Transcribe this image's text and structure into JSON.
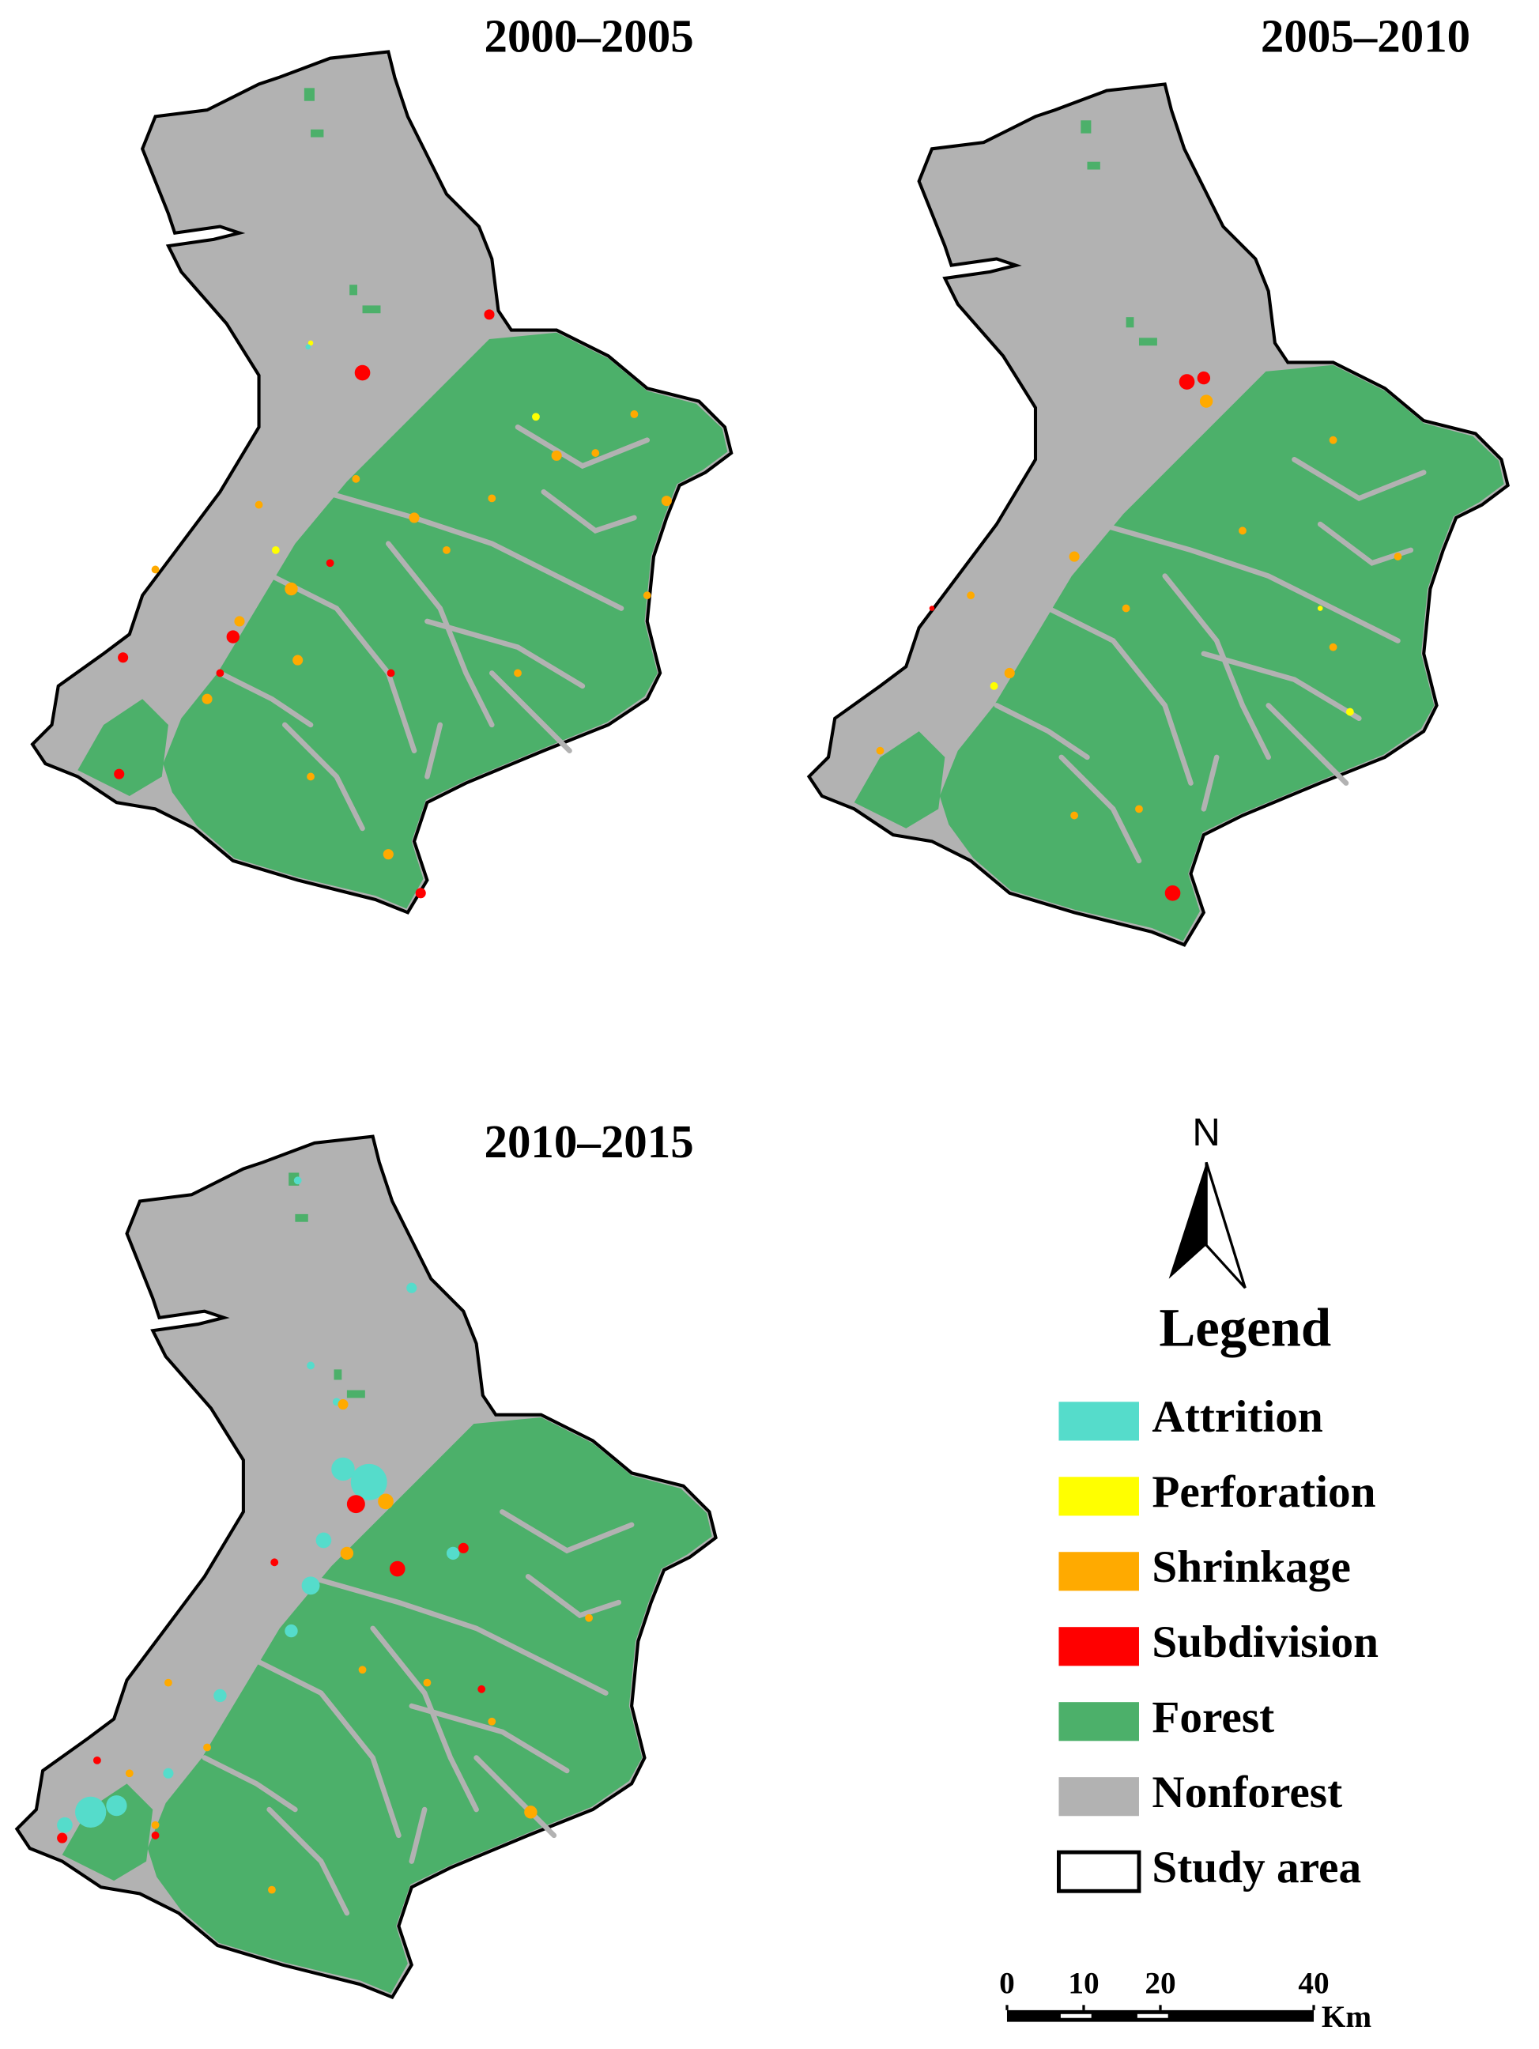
{
  "panels": [
    {
      "title": "2000–2005"
    },
    {
      "title": "2005–2010"
    },
    {
      "title": "2010–2015"
    }
  ],
  "north_arrow": {
    "label": "N"
  },
  "legend": {
    "title": "Legend",
    "items": [
      {
        "label": "Attrition",
        "color": "#55dccb"
      },
      {
        "label": "Perforation",
        "color": "#ffff00"
      },
      {
        "label": "Shrinkage",
        "color": "#ffaa00"
      },
      {
        "label": "Subdivision",
        "color": "#ff0000"
      },
      {
        "label": "Forest",
        "color": "#4cb06a"
      },
      {
        "label": "Nonforest",
        "color": "#b2b2b2"
      },
      {
        "label": "Study area",
        "color": "#ffffff"
      }
    ]
  },
  "scale_bar": {
    "ticks": [
      0,
      10,
      20,
      40
    ],
    "unit": "Km"
  }
}
